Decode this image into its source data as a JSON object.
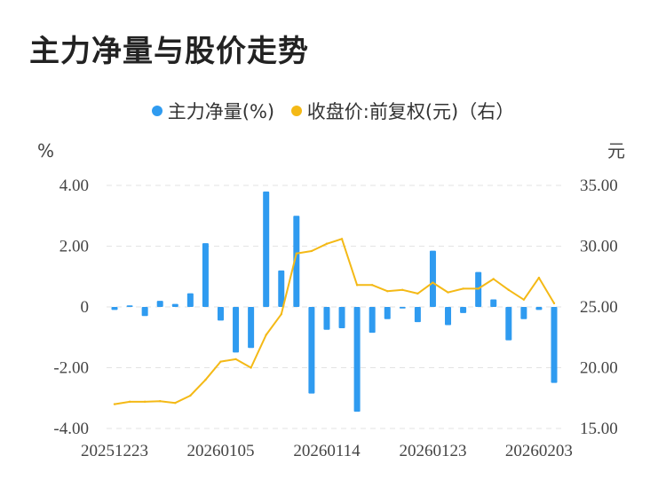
{
  "title": "主力净量与股价走势",
  "colors": {
    "bar": "#2f9bf0",
    "line": "#f4b916",
    "grid": "#e3e3e3"
  },
  "chart_data": {
    "type": "bar+line",
    "legend": {
      "placement": "top-center",
      "items": [
        {
          "label": "主力净量(%)",
          "color": "#2f9bf0"
        },
        {
          "label": "收盘价:前复权(元)（右）",
          "color": "#f4b916"
        }
      ]
    },
    "y_left": {
      "unit": "%",
      "ylim": [
        -4,
        4
      ],
      "ticks": [
        "4.00",
        "2.00",
        "0",
        "-2.00",
        "-4.00"
      ],
      "tick_values": [
        4,
        2,
        0,
        -2,
        -4
      ]
    },
    "y_right": {
      "unit": "元",
      "ylim": [
        15,
        35
      ],
      "ticks": [
        "35.00",
        "30.00",
        "25.00",
        "20.00",
        "15.00"
      ],
      "tick_values": [
        35,
        30,
        25,
        20,
        15
      ]
    },
    "x_tick_labels": [
      "20251223",
      "20260105",
      "20260114",
      "20260123",
      "20260203"
    ],
    "x_tick_index": [
      0,
      7,
      14,
      21,
      28
    ],
    "grid": "horizontal-dashed",
    "series": [
      {
        "name": "主力净量(%)",
        "type": "bar",
        "values": [
          -0.1,
          0.05,
          -0.3,
          0.2,
          0.1,
          0.45,
          2.1,
          -0.45,
          -1.5,
          -1.35,
          3.8,
          1.2,
          3.0,
          -2.85,
          -0.75,
          -0.7,
          -3.45,
          -0.85,
          -0.4,
          -0.05,
          -0.5,
          1.85,
          -0.6,
          -0.2,
          1.15,
          0.25,
          -1.1,
          -0.4,
          -0.1,
          -2.5
        ]
      },
      {
        "name": "收盘价:前复权(元)（右）",
        "type": "line",
        "values": [
          17.0,
          17.2,
          17.2,
          17.25,
          17.1,
          17.7,
          19.0,
          20.5,
          20.7,
          20.0,
          22.7,
          24.4,
          29.4,
          29.6,
          30.2,
          30.6,
          26.8,
          26.8,
          26.3,
          26.4,
          26.1,
          27.0,
          26.2,
          26.5,
          26.5,
          27.3,
          26.4,
          25.6,
          27.4,
          25.3
        ]
      }
    ]
  }
}
